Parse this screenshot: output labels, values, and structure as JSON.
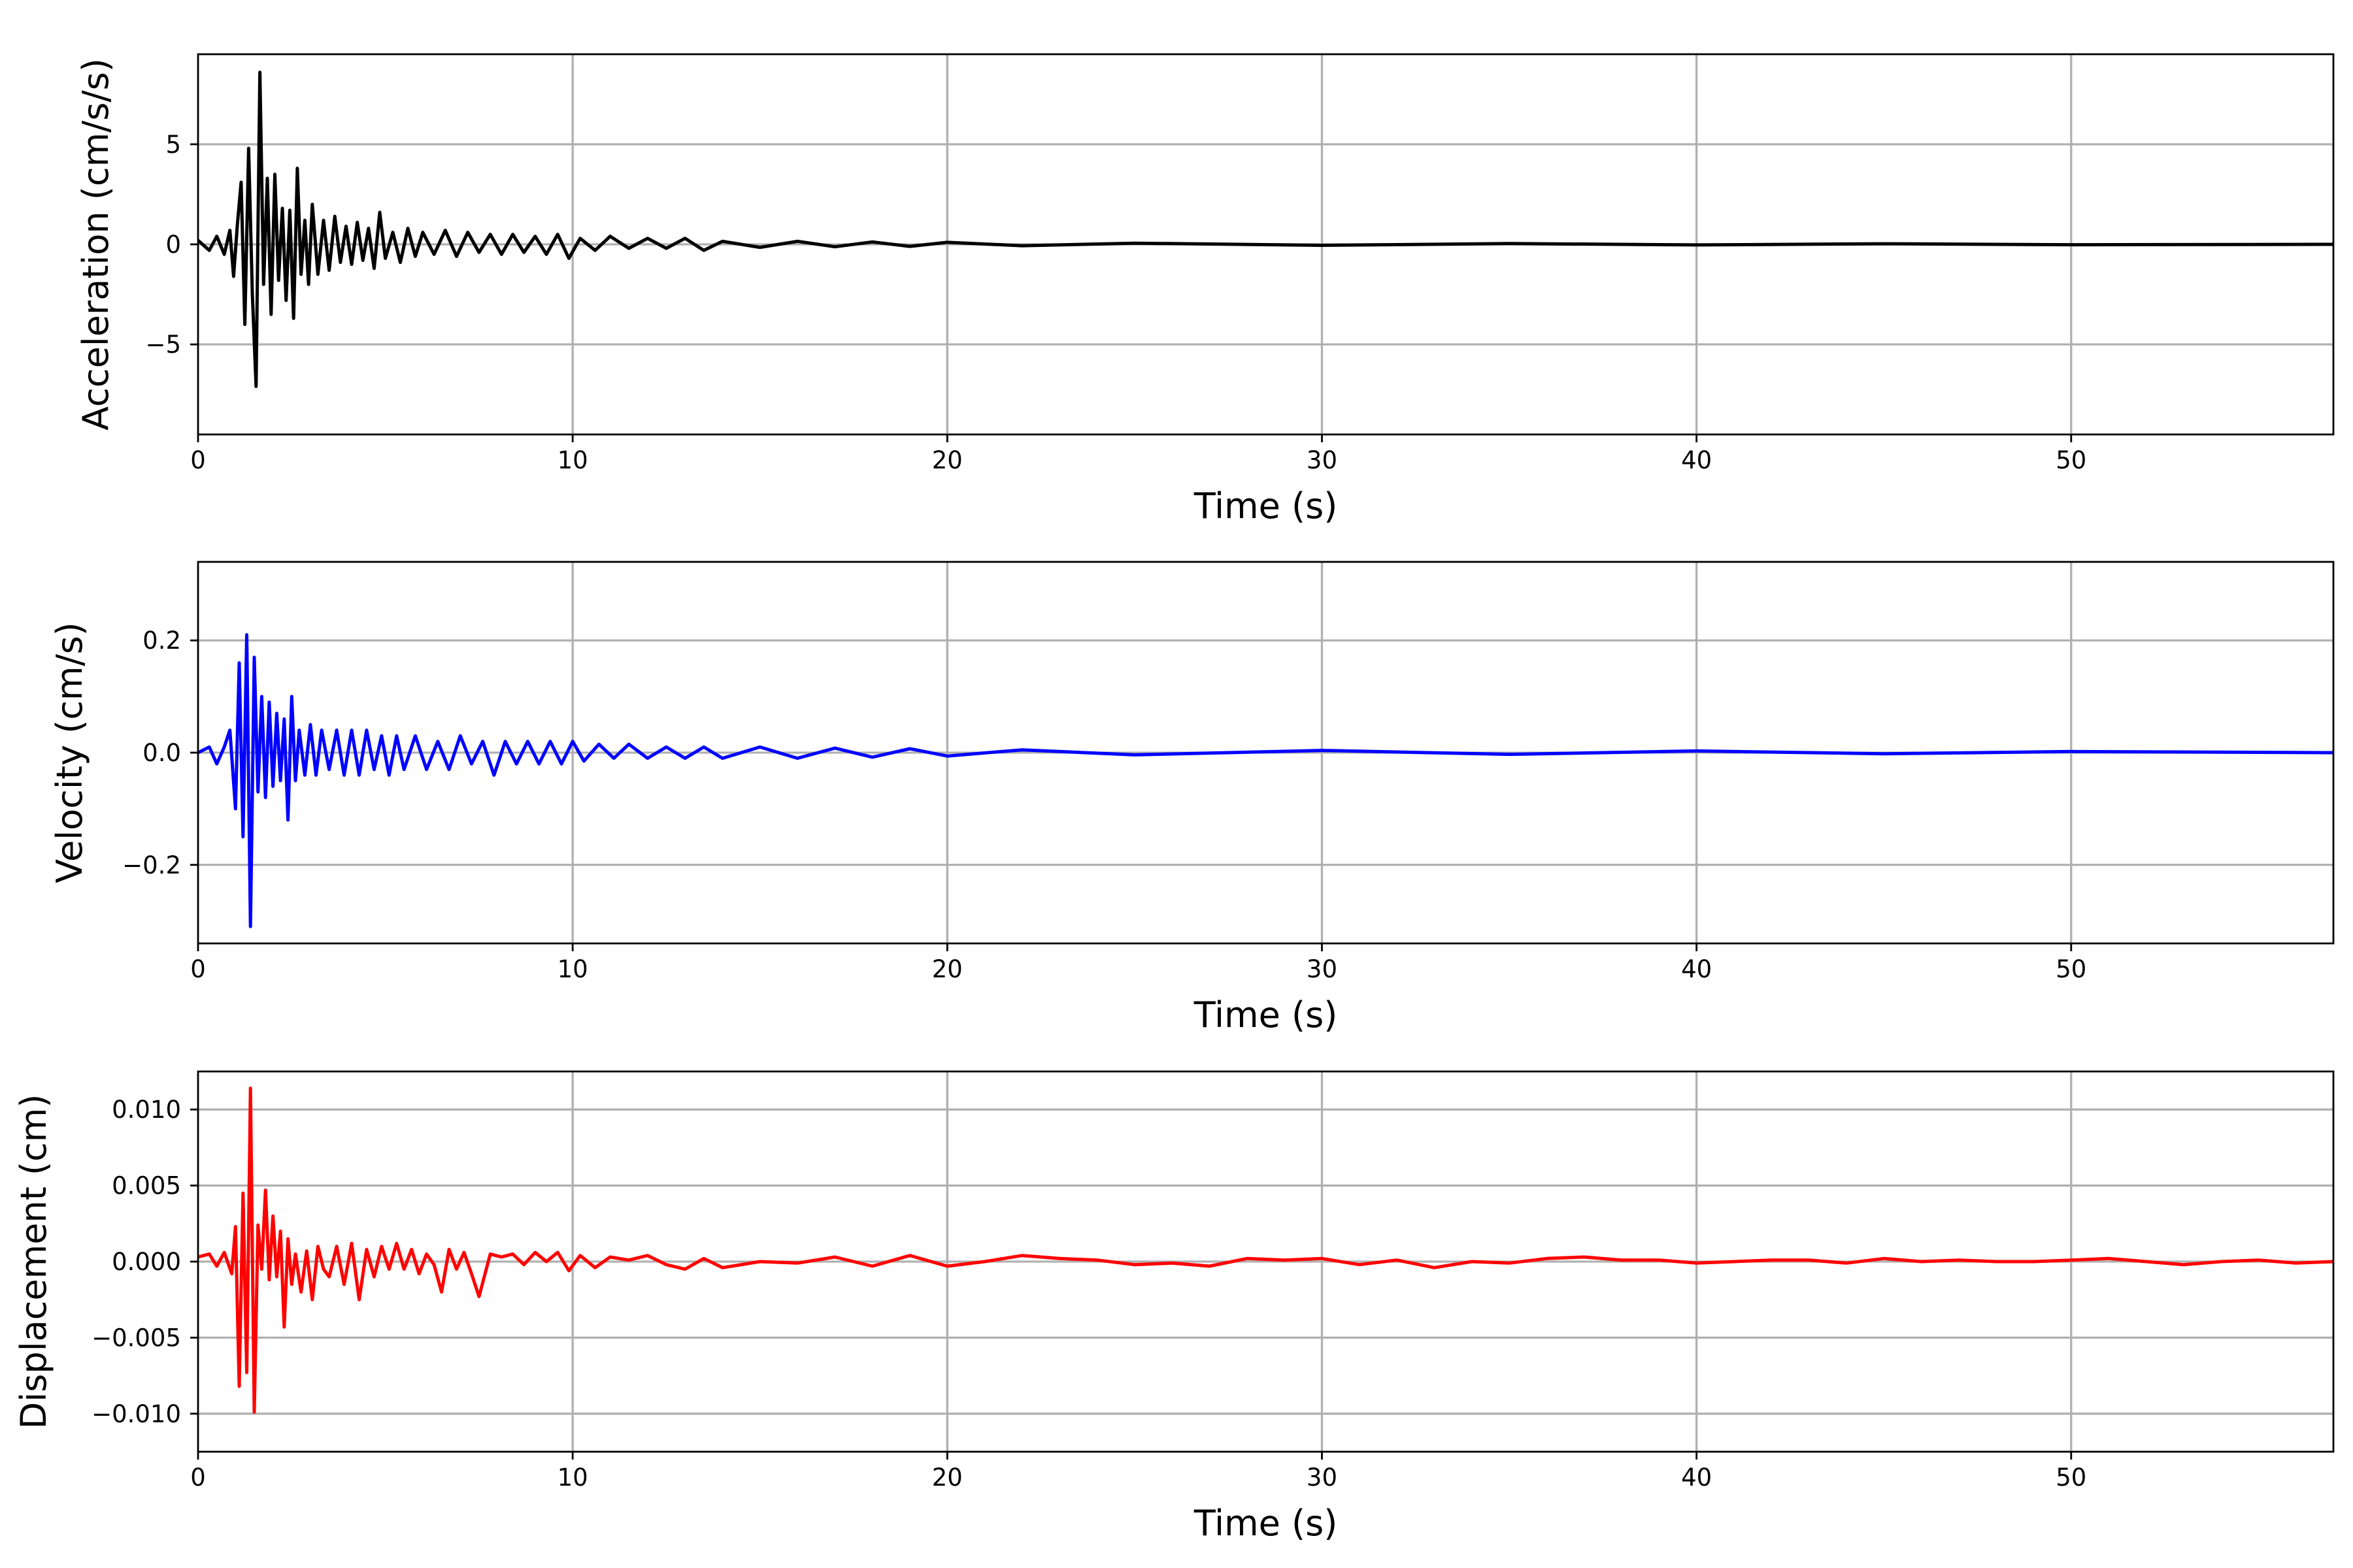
{
  "chart_data": [
    {
      "type": "line",
      "title": "",
      "xlabel": "Time (s)",
      "ylabel": "Acceleration (cm/s/s)",
      "xlim": [
        0,
        57
      ],
      "ylim": [
        -9.5,
        9.5
      ],
      "xticks": [
        0,
        10,
        20,
        30,
        40,
        50
      ],
      "xtick_labels": [
        "0",
        "10",
        "20",
        "30",
        "40",
        "50"
      ],
      "yticks": [
        -5,
        0,
        5
      ],
      "ytick_labels": [
        "−5",
        "0",
        "5"
      ],
      "grid": true,
      "legend": "none",
      "series": [
        {
          "color": "#000000",
          "x": [
            0,
            0.3,
            0.5,
            0.7,
            0.85,
            0.95,
            1.05,
            1.15,
            1.25,
            1.35,
            1.45,
            1.55,
            1.65,
            1.75,
            1.85,
            1.95,
            2.05,
            2.15,
            2.25,
            2.35,
            2.45,
            2.55,
            2.65,
            2.75,
            2.85,
            2.95,
            3.05,
            3.2,
            3.35,
            3.5,
            3.65,
            3.8,
            3.95,
            4.1,
            4.25,
            4.4,
            4.55,
            4.7,
            4.85,
            5.0,
            5.2,
            5.4,
            5.6,
            5.8,
            6.0,
            6.3,
            6.6,
            6.9,
            7.2,
            7.5,
            7.8,
            8.1,
            8.4,
            8.7,
            9.0,
            9.3,
            9.6,
            9.9,
            10.2,
            10.6,
            11.0,
            11.5,
            12.0,
            12.5,
            13.0,
            13.5,
            14.0,
            15.0,
            16.0,
            17.0,
            18.0,
            19.0,
            20.0,
            22.0,
            25.0,
            30.0,
            35.0,
            40.0,
            45.0,
            50.0,
            57.0
          ],
          "y": [
            0.2,
            -0.3,
            0.4,
            -0.5,
            0.7,
            -1.6,
            1.0,
            3.1,
            -4.0,
            4.8,
            -2.5,
            -7.1,
            8.6,
            -2.0,
            3.3,
            -3.5,
            3.5,
            -1.8,
            1.8,
            -2.8,
            1.7,
            -3.7,
            3.8,
            -1.5,
            1.2,
            -2.0,
            2.0,
            -1.5,
            1.2,
            -1.3,
            1.4,
            -0.9,
            0.9,
            -1.0,
            1.1,
            -0.8,
            0.8,
            -1.2,
            1.6,
            -0.7,
            0.6,
            -0.9,
            0.8,
            -0.6,
            0.6,
            -0.5,
            0.7,
            -0.6,
            0.6,
            -0.4,
            0.5,
            -0.5,
            0.5,
            -0.4,
            0.4,
            -0.5,
            0.5,
            -0.7,
            0.3,
            -0.3,
            0.4,
            -0.2,
            0.3,
            -0.2,
            0.3,
            -0.3,
            0.15,
            -0.15,
            0.15,
            -0.12,
            0.12,
            -0.1,
            0.1,
            -0.07,
            0.06,
            -0.05,
            0.04,
            -0.03,
            0.03,
            -0.02,
            0.0
          ]
        }
      ]
    },
    {
      "type": "line",
      "title": "",
      "xlabel": "Time (s)",
      "ylabel": "Velocity (cm/s)",
      "xlim": [
        0,
        57
      ],
      "ylim": [
        -0.34,
        0.34
      ],
      "xticks": [
        0,
        10,
        20,
        30,
        40,
        50
      ],
      "xtick_labels": [
        "0",
        "10",
        "20",
        "30",
        "40",
        "50"
      ],
      "yticks": [
        -0.2,
        0.0,
        0.2
      ],
      "ytick_labels": [
        "−0.2",
        "0.0",
        "0.2"
      ],
      "grid": true,
      "legend": "none",
      "series": [
        {
          "color": "#0000ff",
          "x": [
            0,
            0.3,
            0.5,
            0.7,
            0.85,
            1.0,
            1.1,
            1.2,
            1.3,
            1.4,
            1.5,
            1.6,
            1.7,
            1.8,
            1.9,
            2.0,
            2.1,
            2.2,
            2.3,
            2.4,
            2.5,
            2.6,
            2.7,
            2.85,
            3.0,
            3.15,
            3.3,
            3.5,
            3.7,
            3.9,
            4.1,
            4.3,
            4.5,
            4.7,
            4.9,
            5.1,
            5.3,
            5.5,
            5.8,
            6.1,
            6.4,
            6.7,
            7.0,
            7.3,
            7.6,
            7.9,
            8.2,
            8.5,
            8.8,
            9.1,
            9.4,
            9.7,
            10.0,
            10.3,
            10.7,
            11.1,
            11.5,
            12.0,
            12.5,
            13.0,
            13.5,
            14.0,
            15.0,
            16.0,
            17.0,
            18.0,
            19.0,
            20.0,
            22.0,
            25.0,
            30.0,
            35.0,
            40.0,
            45.0,
            50.0,
            57.0
          ],
          "y": [
            0.0,
            0.01,
            -0.02,
            0.01,
            0.04,
            -0.1,
            0.16,
            -0.15,
            0.21,
            -0.31,
            0.17,
            -0.07,
            0.1,
            -0.08,
            0.09,
            -0.06,
            0.07,
            -0.05,
            0.06,
            -0.12,
            0.1,
            -0.05,
            0.04,
            -0.04,
            0.05,
            -0.04,
            0.04,
            -0.03,
            0.04,
            -0.04,
            0.04,
            -0.04,
            0.04,
            -0.03,
            0.03,
            -0.04,
            0.03,
            -0.03,
            0.03,
            -0.03,
            0.02,
            -0.03,
            0.03,
            -0.02,
            0.02,
            -0.04,
            0.02,
            -0.02,
            0.02,
            -0.02,
            0.02,
            -0.02,
            0.02,
            -0.015,
            0.015,
            -0.01,
            0.015,
            -0.01,
            0.01,
            -0.01,
            0.01,
            -0.01,
            0.01,
            -0.01,
            0.008,
            -0.008,
            0.007,
            -0.006,
            0.005,
            -0.004,
            0.004,
            -0.003,
            0.003,
            -0.002,
            0.002,
            0.0
          ]
        }
      ]
    },
    {
      "type": "line",
      "title": "",
      "xlabel": "Time (s)",
      "ylabel": "Displacement (cm)",
      "xlim": [
        0,
        57
      ],
      "ylim": [
        -0.0125,
        0.0125
      ],
      "xticks": [
        0,
        10,
        20,
        30,
        40,
        50
      ],
      "xtick_labels": [
        "0",
        "10",
        "20",
        "30",
        "40",
        "50"
      ],
      "yticks": [
        -0.01,
        -0.005,
        0.0,
        0.005,
        0.01
      ],
      "ytick_labels": [
        "−0.010",
        "−0.005",
        "0.000",
        "0.005",
        "0.010"
      ],
      "grid": true,
      "legend": "none",
      "series": [
        {
          "color": "#ff0000",
          "x": [
            0,
            0.3,
            0.5,
            0.7,
            0.9,
            1.0,
            1.1,
            1.2,
            1.3,
            1.4,
            1.5,
            1.6,
            1.7,
            1.8,
            1.9,
            2.0,
            2.1,
            2.2,
            2.3,
            2.4,
            2.5,
            2.6,
            2.75,
            2.9,
            3.05,
            3.2,
            3.35,
            3.5,
            3.7,
            3.9,
            4.1,
            4.3,
            4.5,
            4.7,
            4.9,
            5.1,
            5.3,
            5.5,
            5.7,
            5.9,
            6.1,
            6.3,
            6.5,
            6.7,
            6.9,
            7.1,
            7.3,
            7.5,
            7.8,
            8.1,
            8.4,
            8.7,
            9.0,
            9.3,
            9.6,
            9.9,
            10.2,
            10.6,
            11.0,
            11.5,
            12.0,
            12.5,
            13.0,
            13.5,
            14.0,
            15.0,
            16.0,
            17.0,
            18.0,
            19.0,
            20.0,
            21.0,
            22.0,
            23.0,
            24.0,
            25.0,
            26.0,
            27.0,
            28.0,
            29.0,
            30.0,
            31.0,
            32.0,
            33.0,
            34.0,
            35.0,
            36.0,
            37.0,
            38.0,
            39.0,
            40.0,
            41.0,
            42.0,
            43.0,
            44.0,
            45.0,
            46.0,
            47.0,
            48.0,
            49.0,
            50.0,
            51.0,
            52.0,
            53.0,
            54.0,
            55.0,
            56.0,
            57.0
          ],
          "y": [
            0.0003,
            0.0005,
            -0.0003,
            0.0006,
            -0.0008,
            0.0023,
            -0.0082,
            0.0045,
            -0.0073,
            0.0114,
            -0.0099,
            0.0024,
            -0.0005,
            0.0047,
            -0.0012,
            0.003,
            -0.001,
            0.002,
            -0.0043,
            0.0015,
            -0.0015,
            0.0005,
            -0.002,
            0.0007,
            -0.0025,
            0.001,
            -0.0005,
            -0.001,
            0.001,
            -0.0015,
            0.0012,
            -0.0025,
            0.0008,
            -0.001,
            0.001,
            -0.0005,
            0.0012,
            -0.0005,
            0.0008,
            -0.0008,
            0.0005,
            -0.0002,
            -0.002,
            0.0008,
            -0.0005,
            0.0006,
            -0.0008,
            -0.0023,
            0.0005,
            0.0003,
            0.0005,
            -0.0002,
            0.0006,
            0.0,
            0.0006,
            -0.0006,
            0.0004,
            -0.0004,
            0.0003,
            0.0001,
            0.0004,
            -0.0002,
            -0.0005,
            0.0002,
            -0.0004,
            0.0,
            -0.0001,
            0.0003,
            -0.0003,
            0.0004,
            -0.0003,
            0.0,
            0.0004,
            0.0002,
            0.0001,
            -0.0002,
            -0.0001,
            -0.0003,
            0.0002,
            0.0001,
            0.0002,
            -0.0002,
            0.0001,
            -0.0004,
            0.0,
            -0.0001,
            0.0002,
            0.0003,
            0.0001,
            0.0001,
            -0.0001,
            0.0,
            0.0001,
            0.0001,
            -0.0001,
            0.0002,
            0.0,
            0.0001,
            0.0,
            0.0,
            0.0001,
            0.0002,
            0.0,
            -0.0002,
            0.0,
            0.0001,
            -0.0001,
            0.0
          ]
        }
      ]
    }
  ]
}
